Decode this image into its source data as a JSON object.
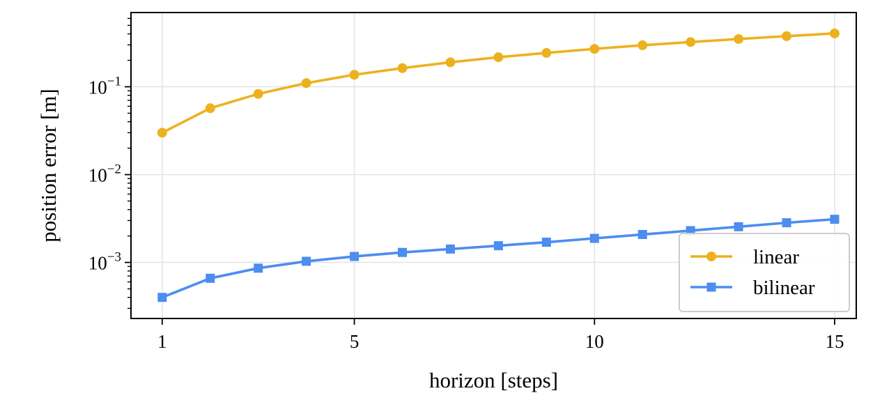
{
  "chart_data": {
    "type": "line",
    "xlabel": "horizon [steps]",
    "ylabel": "position error [m]",
    "xlim": [
      0.35,
      15.45
    ],
    "ylim": [
      0.00023,
      0.7
    ],
    "yscale": "log",
    "grid": true,
    "legend_position": "lower-right",
    "x_ticks": [
      1,
      5,
      10,
      15
    ],
    "x_tick_labels": [
      "1",
      "5",
      "10",
      "15"
    ],
    "y_ticks": [
      0.001,
      0.01,
      0.1
    ],
    "y_tick_labels": [
      {
        "base": "10",
        "exp": "−3"
      },
      {
        "base": "10",
        "exp": "−2"
      },
      {
        "base": "10",
        "exp": "−1"
      }
    ],
    "x": [
      1,
      2,
      3,
      4,
      5,
      6,
      7,
      8,
      9,
      10,
      11,
      12,
      13,
      14,
      15
    ],
    "series": [
      {
        "name": "linear",
        "color": "#eeb11e",
        "marker": "circle",
        "values": [
          0.03,
          0.057,
          0.083,
          0.11,
          0.137,
          0.163,
          0.19,
          0.217,
          0.243,
          0.27,
          0.297,
          0.323,
          0.35,
          0.377,
          0.405
        ]
      },
      {
        "name": "bilinear",
        "color": "#4c8df0",
        "marker": "square",
        "values": [
          0.0004,
          0.00066,
          0.00086,
          0.00103,
          0.00117,
          0.0013,
          0.00142,
          0.00155,
          0.0017,
          0.00188,
          0.00208,
          0.0023,
          0.00255,
          0.00283,
          0.0031
        ]
      }
    ]
  }
}
